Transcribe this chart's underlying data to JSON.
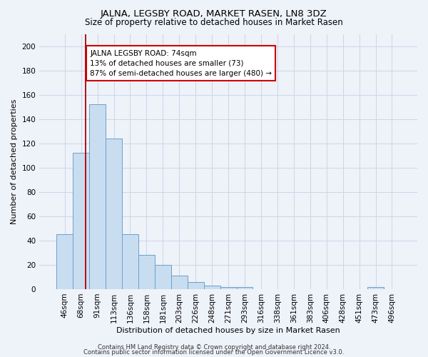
{
  "title": "JALNA, LEGSBY ROAD, MARKET RASEN, LN8 3DZ",
  "subtitle": "Size of property relative to detached houses in Market Rasen",
  "xlabel": "Distribution of detached houses by size in Market Rasen",
  "ylabel": "Number of detached properties",
  "bar_color": "#c9ddf0",
  "bar_edge_color": "#6aa0cc",
  "background_color": "#eef2f9",
  "categories": [
    "46sqm",
    "68sqm",
    "91sqm",
    "113sqm",
    "136sqm",
    "158sqm",
    "181sqm",
    "203sqm",
    "226sqm",
    "248sqm",
    "271sqm",
    "293sqm",
    "316sqm",
    "338sqm",
    "361sqm",
    "383sqm",
    "406sqm",
    "428sqm",
    "451sqm",
    "473sqm",
    "496sqm"
  ],
  "values": [
    45,
    112,
    152,
    124,
    45,
    28,
    20,
    11,
    6,
    3,
    2,
    2,
    0,
    0,
    0,
    0,
    0,
    0,
    0,
    2,
    0
  ],
  "ylim": [
    0,
    210
  ],
  "yticks": [
    0,
    20,
    40,
    60,
    80,
    100,
    120,
    140,
    160,
    180,
    200
  ],
  "red_line_x": 1.27,
  "annotation_text": "JALNA LEGSBY ROAD: 74sqm\n13% of detached houses are smaller (73)\n87% of semi-detached houses are larger (480) →",
  "annotation_box_color": "#ffffff",
  "annotation_box_edge": "#cc0000",
  "footer_line1": "Contains HM Land Registry data © Crown copyright and database right 2024.",
  "footer_line2": "Contains public sector information licensed under the Open Government Licence v3.0.",
  "grid_color": "#ccd5e8",
  "title_fontsize": 9.5,
  "subtitle_fontsize": 8.5,
  "xlabel_fontsize": 8,
  "ylabel_fontsize": 8,
  "tick_fontsize": 7.5,
  "annotation_fontsize": 7.5,
  "footer_fontsize": 6
}
